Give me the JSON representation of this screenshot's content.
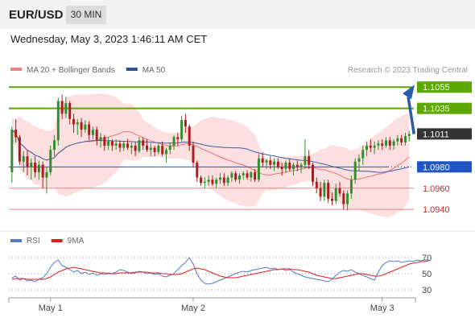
{
  "header": {
    "symbol": "EUR/USD",
    "timeframe": "30 MIN",
    "timestamp": "Wednesday, May 3, 2023 1:46:11 AM CET"
  },
  "colors": {
    "up": "#2f8f2f",
    "down": "#b01a1a",
    "ma20": "#f07070",
    "ma50": "#3a5fa8",
    "band": "#fbd6d6",
    "resistance": "#5aa800",
    "pivot": "#1f56c4",
    "support": "#f08080",
    "last": "#333333",
    "rsi": "#5577cc",
    "rsi_ma": "#dd2222",
    "arrow": "#2a5aa8"
  },
  "chart_data": [
    {
      "type": "candlestick",
      "legend": [
        {
          "label": "MA 20 + Bollinger Bands",
          "color": "#f08080"
        },
        {
          "label": "MA 50",
          "color": "#2c4e8c"
        }
      ],
      "watermark": "Research © 2023 Trading Central",
      "ylim": [
        1.0925,
        1.1065
      ],
      "x_ticks": [
        "May 1",
        "May 2",
        "May 3"
      ],
      "levels": [
        {
          "value": 1.1055,
          "label": "1.1055",
          "kind": "resistance"
        },
        {
          "value": 1.1035,
          "label": "1.1035",
          "kind": "resistance"
        },
        {
          "value": 1.1011,
          "label": "1.1011",
          "kind": "last"
        },
        {
          "value": 1.098,
          "label": "1.0980",
          "kind": "pivot"
        },
        {
          "value": 1.096,
          "label": "1.0960",
          "kind": "support"
        },
        {
          "value": 1.094,
          "label": "1.0940",
          "kind": "support"
        }
      ],
      "candles": [
        [
          1.0975,
          1.1018,
          1.0965,
          1.1015
        ],
        [
          1.1015,
          1.1025,
          1.1003,
          1.1008
        ],
        [
          1.1008,
          1.101,
          1.0982,
          1.0985
        ],
        [
          1.0985,
          1.0995,
          1.0975,
          1.099
        ],
        [
          1.099,
          1.0996,
          1.0972,
          1.098
        ],
        [
          1.098,
          1.0988,
          1.0968,
          1.0984
        ],
        [
          1.0984,
          1.099,
          1.097,
          1.0975
        ],
        [
          1.0975,
          1.0986,
          1.0968,
          1.0982
        ],
        [
          1.0982,
          1.0985,
          1.096,
          1.097
        ],
        [
          1.097,
          1.098,
          1.0955,
          1.0975
        ],
        [
          1.0975,
          1.1,
          1.0972,
          1.0996
        ],
        [
          1.0996,
          1.101,
          1.099,
          1.1005
        ],
        [
          1.1005,
          1.1045,
          1.1,
          1.1042
        ],
        [
          1.1042,
          1.1048,
          1.1025,
          1.103
        ],
        [
          1.103,
          1.1046,
          1.1026,
          1.104
        ],
        [
          1.104,
          1.1042,
          1.102,
          1.1025
        ],
        [
          1.1025,
          1.103,
          1.1012,
          1.102
        ],
        [
          1.102,
          1.1025,
          1.101,
          1.1022
        ],
        [
          1.1022,
          1.1026,
          1.1008,
          1.1015
        ],
        [
          1.1015,
          1.1024,
          1.1012,
          1.102
        ],
        [
          1.102,
          1.1023,
          1.1005,
          1.101
        ],
        [
          1.101,
          1.1018,
          1.1006,
          1.1015
        ],
        [
          1.1015,
          1.1018,
          1.1,
          1.1005
        ],
        [
          1.1005,
          1.1012,
          1.0998,
          1.1008
        ],
        [
          1.1008,
          1.101,
          1.0995,
          1.1
        ],
        [
          1.1,
          1.1008,
          1.0996,
          1.1004
        ],
        [
          1.1004,
          1.1006,
          1.0995,
          1.1
        ],
        [
          1.1,
          1.1006,
          1.0996,
          1.1002
        ],
        [
          1.1002,
          1.1005,
          1.0994,
          1.0998
        ],
        [
          1.0998,
          1.1004,
          1.0995,
          1.1002
        ],
        [
          1.1002,
          1.1006,
          1.0996,
          1.0998
        ],
        [
          1.0998,
          1.1003,
          1.0992,
          1.1
        ],
        [
          1.1,
          1.1003,
          1.099,
          1.0995
        ],
        [
          1.0995,
          1.1008,
          1.0993,
          1.1005
        ],
        [
          1.1005,
          1.1008,
          1.0996,
          1.1
        ],
        [
          1.1,
          1.1006,
          1.0994,
          1.0996
        ],
        [
          1.0996,
          1.1002,
          1.099,
          1.0998
        ],
        [
          1.0998,
          1.1,
          1.099,
          1.0994
        ],
        [
          1.0994,
          1.1002,
          1.0992,
          1.1
        ],
        [
          1.1,
          1.1004,
          1.099,
          1.0992
        ],
        [
          1.0992,
          1.0998,
          1.0984,
          1.0996
        ],
        [
          1.0996,
          1.1003,
          1.0992,
          1.1
        ],
        [
          1.1,
          1.101,
          1.0996,
          1.1008
        ],
        [
          1.1008,
          1.1012,
          1.1,
          1.1006
        ],
        [
          1.1006,
          1.1028,
          1.1004,
          1.1024
        ],
        [
          1.1024,
          1.103,
          1.1012,
          1.1018
        ],
        [
          1.1018,
          1.102,
          1.0995,
          1.1
        ],
        [
          1.1,
          1.1004,
          1.098,
          1.0984
        ],
        [
          1.0984,
          1.0986,
          1.0966,
          1.097
        ],
        [
          1.097,
          1.0972,
          1.0962,
          1.0965
        ],
        [
          1.0965,
          1.097,
          1.096,
          1.0966
        ],
        [
          1.0966,
          1.0972,
          1.0962,
          1.0968
        ],
        [
          1.0968,
          1.0972,
          1.0962,
          1.0964
        ],
        [
          1.0964,
          1.097,
          1.096,
          1.0968
        ],
        [
          1.0968,
          1.0974,
          1.0964,
          1.097
        ],
        [
          1.097,
          1.0974,
          1.0962,
          1.0965
        ],
        [
          1.0965,
          1.0972,
          1.0962,
          1.097
        ],
        [
          1.097,
          1.0976,
          1.0966,
          1.0974
        ],
        [
          1.0974,
          1.0976,
          1.0966,
          1.0968
        ],
        [
          1.0968,
          1.0974,
          1.0964,
          1.0972
        ],
        [
          1.0972,
          1.0976,
          1.0968,
          1.0974
        ],
        [
          1.0974,
          1.0977,
          1.0968,
          1.097
        ],
        [
          1.097,
          1.0976,
          1.0966,
          1.0975
        ],
        [
          1.0975,
          1.0978,
          1.0966,
          1.0968
        ],
        [
          1.0968,
          1.0992,
          1.0966,
          1.0988
        ],
        [
          1.0988,
          1.0994,
          1.098,
          1.0984
        ],
        [
          1.0984,
          1.0988,
          1.0978,
          1.0986
        ],
        [
          1.0986,
          1.099,
          1.0978,
          1.0982
        ],
        [
          1.0982,
          1.0988,
          1.0976,
          1.0985
        ],
        [
          1.0985,
          1.0988,
          1.0978,
          1.098
        ],
        [
          1.098,
          1.0984,
          1.0972,
          1.0978
        ],
        [
          1.0978,
          1.0986,
          1.0974,
          1.0984
        ],
        [
          1.0984,
          1.0988,
          1.0976,
          1.0978
        ],
        [
          1.0978,
          1.0984,
          1.0972,
          1.0982
        ],
        [
          1.0982,
          1.0986,
          1.0976,
          1.098
        ],
        [
          1.098,
          1.0984,
          1.0974,
          1.0982
        ],
        [
          1.0982,
          1.1006,
          1.0978,
          1.099
        ],
        [
          1.099,
          1.0996,
          1.0978,
          1.0982
        ],
        [
          1.0982,
          1.0984,
          1.0962,
          1.0966
        ],
        [
          1.0966,
          1.097,
          1.0955,
          1.096
        ],
        [
          1.096,
          1.0966,
          1.0948,
          1.0952
        ],
        [
          1.0952,
          1.0968,
          1.0948,
          1.0965
        ],
        [
          1.0965,
          1.0968,
          1.0946,
          1.095
        ],
        [
          1.095,
          1.0956,
          1.0944,
          1.0948
        ],
        [
          1.0948,
          1.0964,
          1.0945,
          1.096
        ],
        [
          1.096,
          1.0966,
          1.0952,
          1.0955
        ],
        [
          1.0955,
          1.0958,
          1.094,
          1.0945
        ],
        [
          1.0945,
          1.0958,
          1.0939,
          1.0955
        ],
        [
          1.0955,
          1.0972,
          1.095,
          1.0968
        ],
        [
          1.0968,
          1.0988,
          1.0964,
          1.0985
        ],
        [
          1.0985,
          1.0992,
          1.0976,
          1.0988
        ],
        [
          1.0988,
          1.1,
          1.0982,
          1.0996
        ],
        [
          1.0996,
          1.1004,
          1.099,
          1.1
        ],
        [
          1.1,
          1.1006,
          1.0994,
          1.0998
        ],
        [
          1.0998,
          1.1004,
          1.0992,
          1.1
        ],
        [
          1.1,
          1.1005,
          1.0996,
          1.1002
        ],
        [
          1.1002,
          1.1006,
          1.0996,
          1.1
        ],
        [
          1.1,
          1.1008,
          1.0998,
          1.1005
        ],
        [
          1.1005,
          1.1008,
          1.0996,
          1.1
        ],
        [
          1.1,
          1.1006,
          1.0996,
          1.1004
        ],
        [
          1.1004,
          1.101,
          1.1,
          1.1007
        ],
        [
          1.1007,
          1.101,
          1.1,
          1.1003
        ],
        [
          1.1003,
          1.1012,
          1.1,
          1.1009
        ],
        [
          1.1009,
          1.1014,
          1.1004,
          1.1011
        ]
      ],
      "projection": {
        "from": 1.1011,
        "to": 1.1055
      }
    },
    {
      "type": "line",
      "legend": [
        {
          "label": "RSI",
          "color": "#5577cc"
        },
        {
          "label": "9MA",
          "color": "#dd2222"
        }
      ],
      "ylim": [
        22,
        78
      ],
      "y_ticks": [
        {
          "value": 70,
          "label": "70"
        },
        {
          "value": 50,
          "label": "50"
        },
        {
          "value": 30,
          "label": "30"
        }
      ],
      "series": [
        {
          "name": "RSI",
          "values": [
            45,
            47,
            42,
            44,
            41,
            42,
            40,
            43,
            45,
            50,
            58,
            64,
            67,
            60,
            58,
            55,
            52,
            54,
            50,
            52,
            49,
            51,
            48,
            50,
            49,
            51,
            50,
            52,
            55,
            54,
            52,
            50,
            51,
            53,
            52,
            50,
            51,
            49,
            50,
            47,
            46,
            48,
            50,
            55,
            60,
            64,
            70,
            62,
            50,
            42,
            38,
            37,
            38,
            40,
            42,
            44,
            46,
            48,
            50,
            52,
            53,
            52,
            54,
            55,
            56,
            57,
            58,
            56,
            57,
            55,
            56,
            54,
            55,
            52,
            50,
            48,
            46,
            45,
            44,
            43,
            42,
            41,
            40,
            43,
            48,
            52,
            54,
            53,
            55,
            52,
            50,
            48,
            46,
            44,
            42,
            52,
            60,
            64,
            66,
            65,
            66,
            64,
            65,
            66,
            65,
            67,
            66,
            67,
            67
          ]
        },
        {
          "name": "9MA",
          "values": [
            43,
            44,
            44,
            44,
            43,
            43,
            43,
            43,
            43,
            44,
            46,
            49,
            52,
            54,
            56,
            57,
            58,
            57,
            56,
            55,
            54,
            53,
            52,
            51,
            51,
            50,
            50,
            50,
            51,
            51,
            51,
            51,
            52,
            52,
            52,
            52,
            51,
            51,
            51,
            50,
            50,
            49,
            49,
            49,
            50,
            52,
            54,
            56,
            57,
            56,
            55,
            53,
            51,
            49,
            47,
            46,
            45,
            45,
            45,
            46,
            47,
            48,
            49,
            50,
            51,
            52,
            53,
            54,
            55,
            55,
            56,
            56,
            56,
            55,
            55,
            54,
            53,
            52,
            50,
            48,
            47,
            46,
            45,
            44,
            44,
            45,
            46,
            47,
            48,
            49,
            50,
            50,
            49,
            48,
            47,
            47,
            48,
            50,
            52,
            54,
            56,
            58,
            60,
            62,
            63,
            64,
            65,
            65,
            66
          ]
        }
      ],
      "x_ticks": [
        "May 1",
        "May 2",
        "May 3"
      ]
    }
  ]
}
